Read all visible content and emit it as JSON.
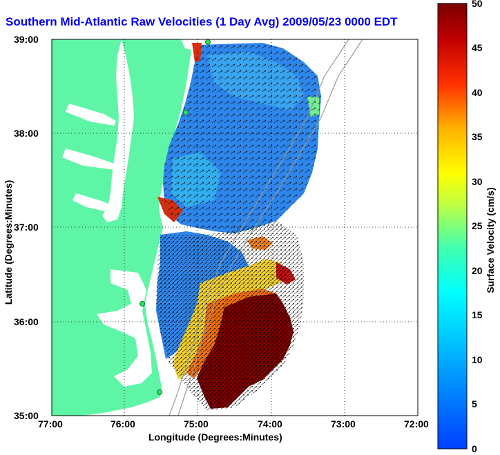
{
  "title": "Southern Mid-Atlantic Raw Velocities (1 Day Avg) 2009/05/23 0000 EDT",
  "xlabel": "Longitude (Degrees:Minutes)",
  "ylabel": "Latitude (Degrees:Minutes)",
  "x_ticks": [
    "77:00",
    "76:00",
    "75:00",
    "74:00",
    "73:00",
    "72:00"
  ],
  "y_ticks": [
    "39:00",
    "38:00",
    "37:00",
    "36:00",
    "35:00"
  ],
  "colorbar": {
    "title": "Surface Velocity (cm/s)",
    "ticks": [
      "50",
      "45",
      "40",
      "35",
      "30",
      "25",
      "20",
      "15",
      "10",
      "5",
      "0"
    ],
    "range": [
      0,
      50
    ]
  },
  "colors": {
    "land": "#5ff5a6",
    "ocean": "#ffffff",
    "title": "#0000ee",
    "low_velocity": "#2f7fe6",
    "high_velocity": "#7a0000"
  }
}
